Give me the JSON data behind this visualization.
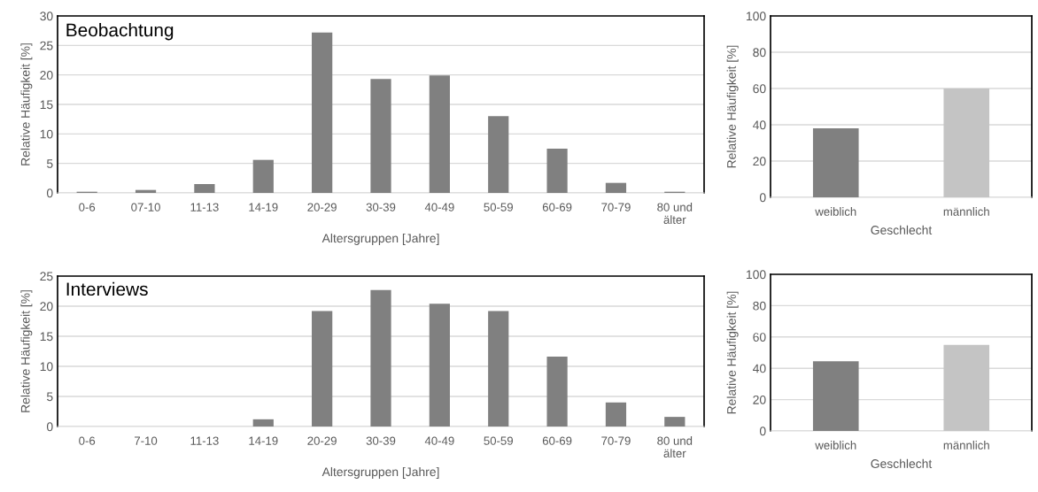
{
  "chart_data": [
    {
      "type": "bar",
      "title": "Beobachtung",
      "xlabel": "Altersgruppen [Jahre]",
      "ylabel": "Relative Häufigkeit [%]",
      "categories": [
        "0-6",
        "07-10",
        "11-13",
        "14-19",
        "20-29",
        "30-39",
        "40-49",
        "50-59",
        "60-69",
        "70-79",
        "80 und\nälter"
      ],
      "values": [
        0.2,
        0.5,
        1.5,
        5.6,
        27.2,
        19.3,
        19.9,
        13.0,
        7.5,
        1.7,
        0.2
      ],
      "color": "#808080",
      "ylim": [
        0,
        30
      ],
      "yticks": [
        0,
        5,
        10,
        15,
        20,
        25,
        30
      ],
      "grid": "y"
    },
    {
      "type": "bar",
      "xlabel": "Geschlecht",
      "ylabel": "Relative Häufigkeit [%]",
      "categories": [
        "weiblich",
        "männlich"
      ],
      "values": [
        38,
        60
      ],
      "colors": [
        "#808080",
        "#c4c4c4"
      ],
      "ylim": [
        0,
        100
      ],
      "yticks": [
        0,
        20,
        40,
        60,
        80,
        100
      ],
      "grid": "y"
    },
    {
      "type": "bar",
      "title": "Interviews",
      "xlabel": "Altersgruppen [Jahre]",
      "ylabel": "Relative Häufigkeit [%]",
      "categories": [
        "0-6",
        "7-10",
        "11-13",
        "14-19",
        "20-29",
        "30-39",
        "40-49",
        "50-59",
        "60-69",
        "70-79",
        "80 und\nälter"
      ],
      "values": [
        0,
        0,
        0,
        1.2,
        19.2,
        22.7,
        20.4,
        19.2,
        11.6,
        4.0,
        1.6
      ],
      "color": "#808080",
      "ylim": [
        0,
        25
      ],
      "yticks": [
        0,
        5,
        10,
        15,
        20,
        25
      ],
      "grid": "y"
    },
    {
      "type": "bar",
      "xlabel": "Geschlecht",
      "ylabel": "Relative Häufigkeit [%]",
      "categories": [
        "weiblich",
        "männlich"
      ],
      "values": [
        44.5,
        55
      ],
      "colors": [
        "#808080",
        "#c4c4c4"
      ],
      "ylim": [
        0,
        100
      ],
      "yticks": [
        0,
        20,
        40,
        60,
        80,
        100
      ],
      "grid": "y"
    }
  ]
}
